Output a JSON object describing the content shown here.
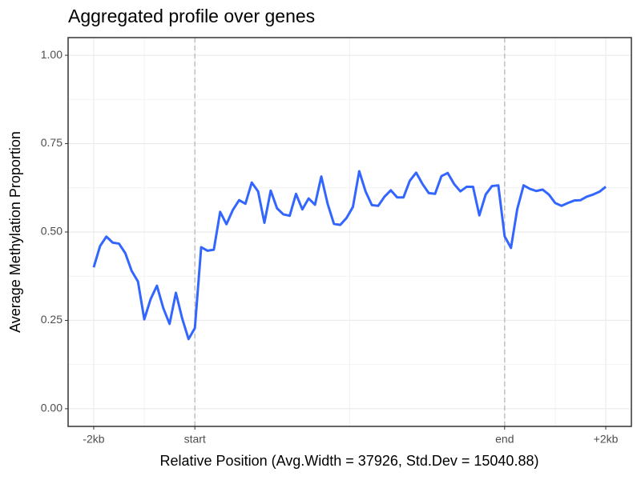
{
  "chart_data": {
    "type": "line",
    "title": "Aggregated profile over genes",
    "x_label": "Relative Position (Avg.Width = 37926, Std.Dev = 15040.88)",
    "y_label": "Average Methylation Proportion",
    "x": [
      0,
      1,
      2,
      3,
      4,
      5,
      6,
      7,
      8,
      9,
      10,
      11,
      12,
      13,
      14,
      15,
      16,
      17,
      18,
      19,
      20,
      21,
      22,
      23,
      24,
      25,
      26,
      27,
      28,
      29,
      30,
      31,
      32,
      33,
      34,
      35,
      36,
      37,
      38,
      39,
      40,
      41,
      42,
      43,
      44,
      45,
      46,
      47,
      48,
      49,
      50,
      51,
      52,
      53,
      54,
      55,
      56,
      57,
      58,
      59,
      60,
      61,
      62,
      63,
      64,
      65,
      66,
      67,
      68,
      69,
      70,
      71,
      72,
      73,
      74,
      75,
      76,
      77,
      78,
      79,
      80,
      81
    ],
    "series": [
      {
        "name": "Average Methylation Proportion",
        "color": "#3366ff",
        "values": [
          0.4,
          0.46,
          0.487,
          0.47,
          0.467,
          0.44,
          0.39,
          0.36,
          0.253,
          0.31,
          0.348,
          0.285,
          0.24,
          0.328,
          0.255,
          0.197,
          0.228,
          0.457,
          0.447,
          0.45,
          0.557,
          0.522,
          0.562,
          0.59,
          0.58,
          0.64,
          0.615,
          0.526,
          0.617,
          0.567,
          0.55,
          0.546,
          0.608,
          0.564,
          0.595,
          0.577,
          0.657,
          0.58,
          0.523,
          0.52,
          0.54,
          0.571,
          0.672,
          0.615,
          0.576,
          0.574,
          0.6,
          0.618,
          0.598,
          0.598,
          0.645,
          0.668,
          0.636,
          0.61,
          0.608,
          0.658,
          0.667,
          0.636,
          0.615,
          0.628,
          0.628,
          0.547,
          0.606,
          0.63,
          0.632,
          0.488,
          0.455,
          0.565,
          0.632,
          0.622,
          0.616,
          0.62,
          0.606,
          0.582,
          0.574,
          0.582,
          0.589,
          0.59,
          0.6,
          0.606,
          0.614,
          0.628
        ]
      }
    ],
    "xlim": [
      -4.05,
      85.05
    ],
    "xticks": [
      {
        "value": 0,
        "label": "-2kb"
      },
      {
        "value": 16,
        "label": "start"
      },
      {
        "value": 65,
        "label": "end"
      },
      {
        "value": 81,
        "label": "+2kb"
      }
    ],
    "ylim": [
      -0.05,
      1.05
    ],
    "yticks": [
      {
        "value": 0,
        "label": "0.00"
      },
      {
        "value": 0.25,
        "label": "0.25"
      },
      {
        "value": 0.5,
        "label": "0.50"
      },
      {
        "value": 0.75,
        "label": "0.75"
      },
      {
        "value": 1,
        "label": "1.00"
      }
    ],
    "vlines": [
      16,
      65
    ],
    "grid": true
  }
}
